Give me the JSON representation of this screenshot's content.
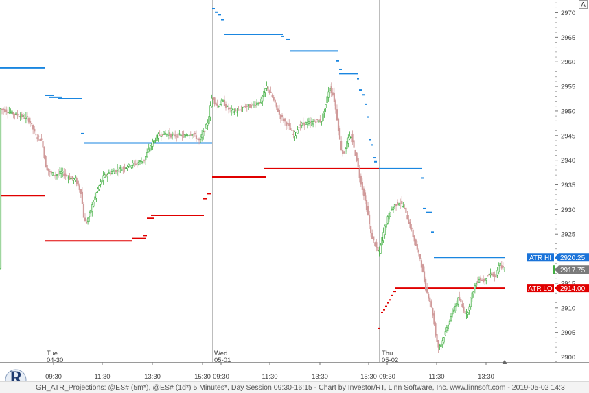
{
  "chart_data": {
    "type": "candlestick",
    "title": "",
    "instrument": "@ES# (5m*)",
    "y_axis": {
      "ticks": [
        2900,
        2905,
        2910,
        2915,
        2920,
        2925,
        2930,
        2935,
        2940,
        2945,
        2950,
        2955,
        2960,
        2965,
        2970
      ],
      "ylim": [
        2898.5,
        2972.5
      ]
    },
    "x_axis": {
      "time_labels": [
        "09:30",
        "11:30",
        "13:30",
        "15:30",
        "09:30",
        "11:30",
        "13:30",
        "15:30",
        "09:30",
        "11:30",
        "13:30"
      ],
      "sessions": [
        {
          "day": "Tue",
          "date": "04-30"
        },
        {
          "day": "Wed",
          "date": "05-01"
        },
        {
          "day": "Thu",
          "date": "05-02"
        }
      ]
    },
    "price_path": [
      [
        0,
        2950.5
      ],
      [
        10,
        2950
      ],
      [
        20,
        2949.5
      ],
      [
        30,
        2949
      ],
      [
        40,
        2948.5
      ],
      [
        45,
        2947.5
      ],
      [
        52,
        2945
      ],
      [
        58,
        2944.5
      ],
      [
        62,
        2943.5
      ],
      [
        66,
        2939
      ],
      [
        72,
        2937.5
      ],
      [
        80,
        2937
      ],
      [
        90,
        2937.5
      ],
      [
        100,
        2936.5
      ],
      [
        110,
        2936
      ],
      [
        118,
        2933.5
      ],
      [
        122,
        2928.5
      ],
      [
        125,
        2927
      ],
      [
        130,
        2929
      ],
      [
        136,
        2931.5
      ],
      [
        142,
        2934
      ],
      [
        150,
        2936.5
      ],
      [
        160,
        2937.5
      ],
      [
        170,
        2938
      ],
      [
        180,
        2938.5
      ],
      [
        190,
        2939
      ],
      [
        200,
        2939.5
      ],
      [
        210,
        2940
      ],
      [
        216,
        2942
      ],
      [
        222,
        2943.5
      ],
      [
        230,
        2945
      ],
      [
        240,
        2945.5
      ],
      [
        250,
        2945
      ],
      [
        260,
        2945
      ],
      [
        270,
        2945
      ],
      [
        280,
        2945.5
      ],
      [
        290,
        2944
      ],
      [
        298,
        2946
      ],
      [
        303,
        2948
      ],
      [
        309,
        2953
      ],
      [
        316,
        2951
      ],
      [
        324,
        2952
      ],
      [
        332,
        2950.5
      ],
      [
        340,
        2950
      ],
      [
        348,
        2950
      ],
      [
        356,
        2951
      ],
      [
        364,
        2951
      ],
      [
        372,
        2951.5
      ],
      [
        380,
        2952
      ],
      [
        388,
        2955
      ],
      [
        396,
        2953
      ],
      [
        402,
        2951
      ],
      [
        408,
        2949
      ],
      [
        414,
        2948
      ],
      [
        420,
        2947
      ],
      [
        428,
        2945
      ],
      [
        436,
        2947
      ],
      [
        444,
        2947.5
      ],
      [
        452,
        2947.5
      ],
      [
        460,
        2948
      ],
      [
        468,
        2948
      ],
      [
        474,
        2951
      ],
      [
        480,
        2955
      ],
      [
        486,
        2953
      ],
      [
        492,
        2947.5
      ],
      [
        496,
        2943
      ],
      [
        500,
        2941
      ],
      [
        506,
        2944
      ],
      [
        512,
        2945
      ],
      [
        516,
        2942
      ],
      [
        520,
        2940
      ],
      [
        524,
        2936.5
      ],
      [
        530,
        2933
      ],
      [
        536,
        2929
      ],
      [
        540,
        2925
      ],
      [
        546,
        2923
      ],
      [
        552,
        2921
      ],
      [
        558,
        2925
      ],
      [
        564,
        2928
      ],
      [
        570,
        2930
      ],
      [
        576,
        2931
      ],
      [
        582,
        2931.5
      ],
      [
        588,
        2930.5
      ],
      [
        594,
        2928
      ],
      [
        600,
        2925.5
      ],
      [
        606,
        2922.5
      ],
      [
        612,
        2920
      ],
      [
        616,
        2917
      ],
      [
        620,
        2914
      ],
      [
        626,
        2911.5
      ],
      [
        630,
        2909
      ],
      [
        634,
        2905
      ],
      [
        638,
        2902
      ],
      [
        644,
        2903
      ],
      [
        650,
        2905.5
      ],
      [
        656,
        2908
      ],
      [
        662,
        2910
      ],
      [
        668,
        2912
      ],
      [
        674,
        2910
      ],
      [
        680,
        2908.5
      ],
      [
        686,
        2912
      ],
      [
        692,
        2914.5
      ],
      [
        698,
        2916
      ],
      [
        704,
        2915.5
      ],
      [
        710,
        2916.5
      ],
      [
        716,
        2917
      ],
      [
        722,
        2916
      ],
      [
        728,
        2919
      ],
      [
        732,
        2918
      ],
      [
        735,
        2918
      ]
    ],
    "atr_hi_levels": [
      {
        "x0": 0,
        "x1": 65,
        "y": 2958.8
      },
      {
        "x0": 65,
        "x1": 78,
        "y": 2953.2
      },
      {
        "x0": 72,
        "x1": 90,
        "y": 2952.8
      },
      {
        "x0": 84,
        "x1": 120,
        "y": 2952.5
      },
      {
        "x0": 118,
        "x1": 122,
        "y": 2945.4
      },
      {
        "x0": 122,
        "x1": 309,
        "y": 2943.5
      },
      {
        "x0": 309,
        "x1": 313,
        "y": 2970.9
      },
      {
        "x0": 313,
        "x1": 318,
        "y": 2970.1
      },
      {
        "x0": 318,
        "x1": 322,
        "y": 2969.6
      },
      {
        "x0": 322,
        "x1": 326,
        "y": 2968.6
      },
      {
        "x0": 326,
        "x1": 412,
        "y": 2965.6
      },
      {
        "x0": 410,
        "x1": 414,
        "y": 2965.2
      },
      {
        "x0": 416,
        "x1": 422,
        "y": 2964.5
      },
      {
        "x0": 422,
        "x1": 492,
        "y": 2962.2
      },
      {
        "x0": 490,
        "x1": 494,
        "y": 2960.2
      },
      {
        "x0": 494,
        "x1": 498,
        "y": 2958.5
      },
      {
        "x0": 494,
        "x1": 522,
        "y": 2957.6
      },
      {
        "x0": 520,
        "x1": 523,
        "y": 2956.6
      },
      {
        "x0": 523,
        "x1": 528,
        "y": 2954.3
      },
      {
        "x0": 528,
        "x1": 531,
        "y": 2953.3
      },
      {
        "x0": 531,
        "x1": 534,
        "y": 2951.4
      },
      {
        "x0": 534,
        "x1": 537,
        "y": 2948.8
      },
      {
        "x0": 537,
        "x1": 540,
        "y": 2944.2
      },
      {
        "x0": 540,
        "x1": 543,
        "y": 2943.1
      },
      {
        "x0": 543,
        "x1": 547,
        "y": 2940.5
      },
      {
        "x0": 545,
        "x1": 549,
        "y": 2939.7
      },
      {
        "x0": 552,
        "x1": 615,
        "y": 2938.3
      },
      {
        "x0": 613,
        "x1": 618,
        "y": 2936.4
      },
      {
        "x0": 616,
        "x1": 621,
        "y": 2930.2
      },
      {
        "x0": 621,
        "x1": 629,
        "y": 2929.4
      },
      {
        "x0": 628,
        "x1": 632,
        "y": 2925.4
      },
      {
        "x0": 632,
        "x1": 735,
        "y": 2920.25
      }
    ],
    "atr_lo_levels": [
      {
        "x0": 0,
        "x1": 65,
        "y": 2932.8
      },
      {
        "x0": 65,
        "x1": 192,
        "y": 2923.6
      },
      {
        "x0": 192,
        "x1": 212,
        "y": 2924.1
      },
      {
        "x0": 208,
        "x1": 214,
        "y": 2924.7
      },
      {
        "x0": 214,
        "x1": 224,
        "y": 2928.2
      },
      {
        "x0": 220,
        "x1": 226,
        "y": 2928.8
      },
      {
        "x0": 226,
        "x1": 297,
        "y": 2928.8
      },
      {
        "x0": 296,
        "x1": 302,
        "y": 2932.2
      },
      {
        "x0": 302,
        "x1": 307,
        "y": 2933.2
      },
      {
        "x0": 309,
        "x1": 387,
        "y": 2936.6
      },
      {
        "x0": 385,
        "x1": 552,
        "y": 2938.3
      },
      {
        "x0": 550,
        "x1": 554,
        "y": 2905.8
      },
      {
        "x0": 555,
        "x1": 558,
        "y": 2909
      },
      {
        "x0": 558,
        "x1": 561,
        "y": 2909.6
      },
      {
        "x0": 561,
        "x1": 564,
        "y": 2910.3
      },
      {
        "x0": 564,
        "x1": 567,
        "y": 2911
      },
      {
        "x0": 567,
        "x1": 570,
        "y": 2911.6
      },
      {
        "x0": 570,
        "x1": 573,
        "y": 2912.5
      },
      {
        "x0": 573,
        "x1": 577,
        "y": 2913.3
      },
      {
        "x0": 576,
        "x1": 735,
        "y": 2914.0
      }
    ],
    "markers": [
      {
        "label": "ATR HI",
        "value": "2920.25",
        "color": "#1a73d9"
      },
      {
        "label": "",
        "value": "2917.75",
        "color": "#7a7a7a"
      },
      {
        "label": "ATR LO",
        "value": "2914.00",
        "color": "#e00000"
      }
    ],
    "colors": {
      "atr_hi": "#1a86e0",
      "atr_lo": "#e00000",
      "up_candle": "#3fae3f",
      "down_candle": "#d09a9a",
      "grid": "#c8c8c8"
    }
  },
  "footer": {
    "text": "GH_ATR_Projections: @ES# (5m*), @ES# (1d*) 5 Minutes*, Day Session 09:30-16:15 - Chart by Investor/RT, Linn Software, Inc. www.linnsoft.com - 2019-05-02 14:3"
  },
  "corner_button": "A",
  "logo": {
    "letter": "R"
  }
}
